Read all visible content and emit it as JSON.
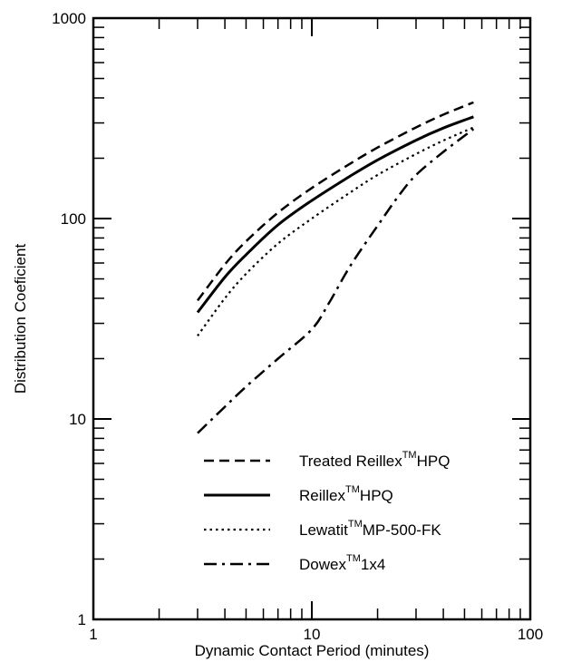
{
  "chart_data": {
    "type": "line",
    "title": "",
    "xlabel": "Dynamic Contact Period (minutes)",
    "ylabel": "Distribution Coeficient",
    "x_scale": "log",
    "y_scale": "log",
    "xlim": [
      1,
      100
    ],
    "ylim": [
      1,
      1000
    ],
    "x_ticks": [
      "1",
      "10",
      "100"
    ],
    "y_ticks": [
      "1",
      "10",
      "100",
      "1000"
    ],
    "grid": false,
    "legend_position": "bottom-right",
    "series": [
      {
        "name": "Treated Reillex",
        "name_superscript": "TM",
        "name_suffix": "HPQ",
        "dash": "dashed",
        "x": [
          3,
          4,
          5,
          7,
          10,
          15,
          20,
          30,
          40,
          55
        ],
        "y": [
          39,
          59,
          77,
          107,
          142,
          188,
          226,
          285,
          330,
          380
        ]
      },
      {
        "name": "Reillex",
        "name_superscript": "TM",
        "name_suffix": "HPQ",
        "dash": "solid",
        "x": [
          3,
          4,
          5,
          7,
          10,
          15,
          20,
          30,
          40,
          55
        ],
        "y": [
          34,
          51,
          66,
          93,
          123,
          163,
          196,
          246,
          283,
          322
        ]
      },
      {
        "name": "Lewatit",
        "name_superscript": "TM",
        "name_suffix": "MP-500-FK",
        "dash": "dotted",
        "x": [
          3,
          4,
          5,
          7,
          10,
          15,
          20,
          30,
          40,
          55
        ],
        "y": [
          26,
          40,
          53,
          75,
          100,
          135,
          165,
          210,
          245,
          285
        ]
      },
      {
        "name": "Dowex",
        "name_superscript": "TM",
        "name_suffix": "1x4",
        "dash": "dashdot",
        "x": [
          3,
          4,
          5,
          7,
          10,
          12,
          15,
          20,
          25,
          30,
          40,
          55
        ],
        "y": [
          8.5,
          11.5,
          14.5,
          20,
          28,
          38,
          58,
          92,
          130,
          165,
          215,
          280
        ]
      }
    ]
  }
}
